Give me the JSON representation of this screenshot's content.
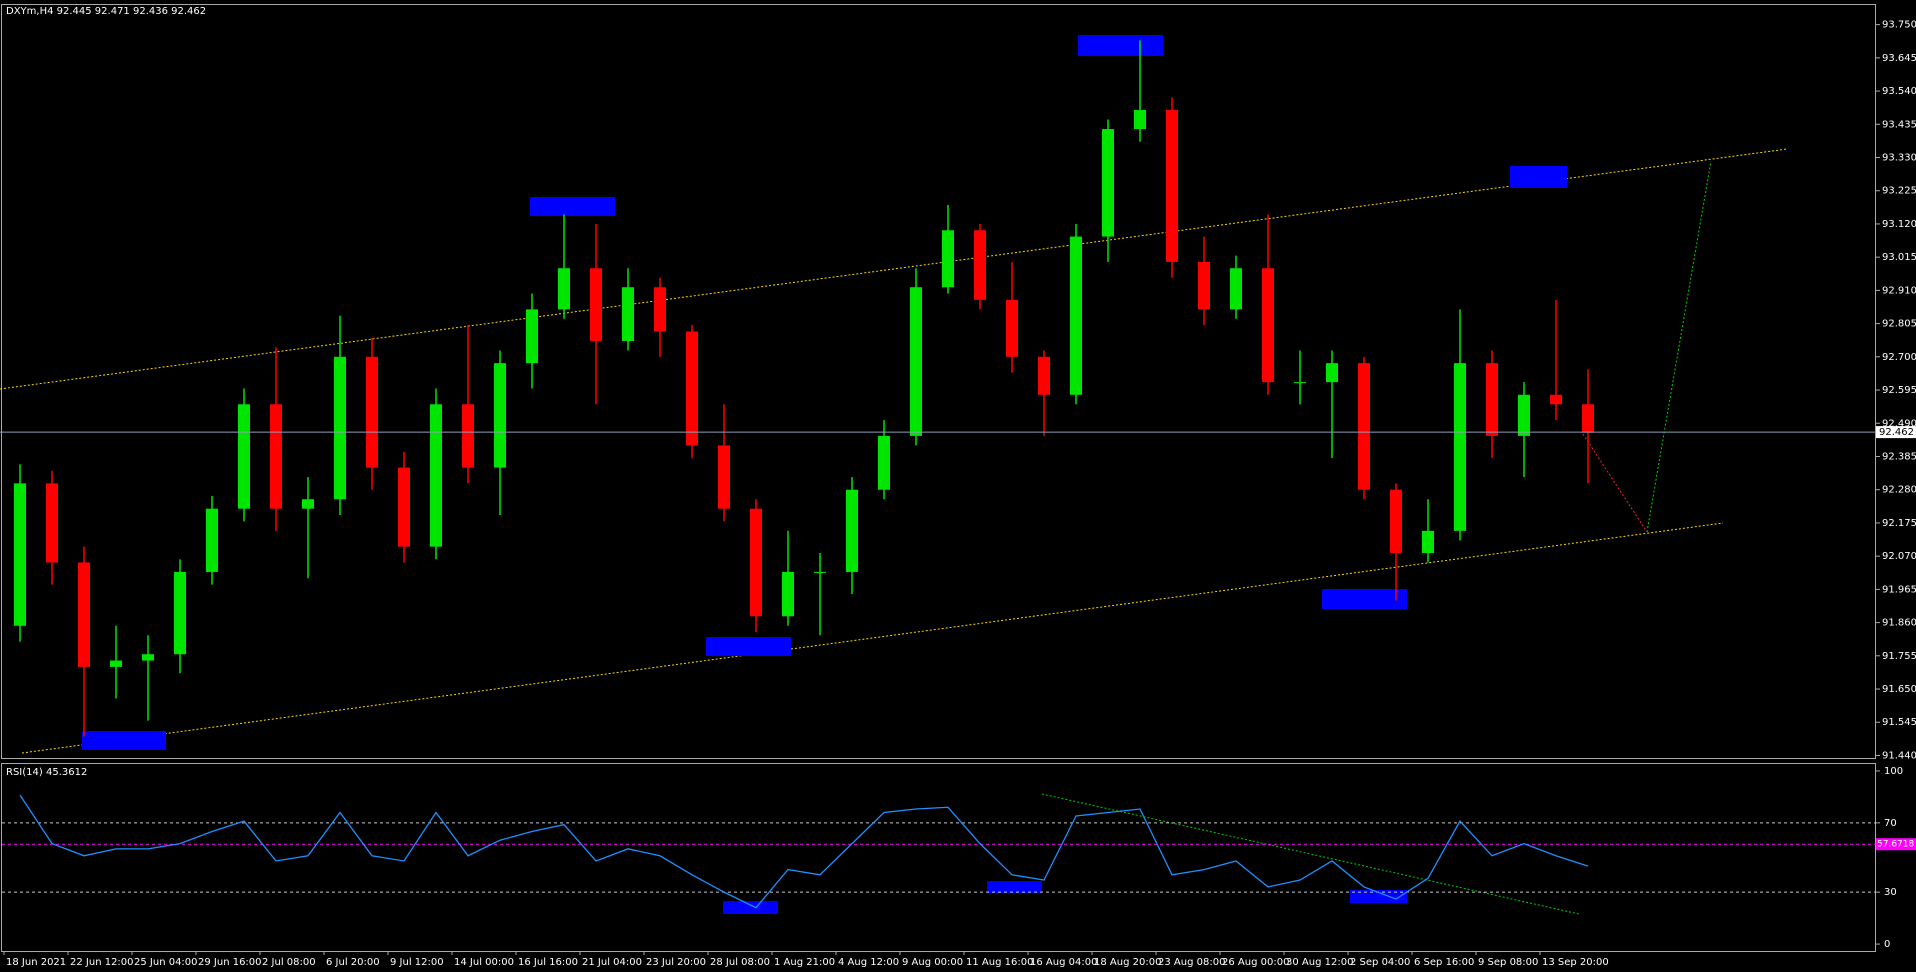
{
  "chart_data": [
    {
      "type": "candlestick",
      "title": "DXYm,H4  92.445 92.471 92.436 92.462",
      "categories": [
        "18 Jun 2021",
        null,
        "22 Jun 12:00",
        null,
        "25 Jun 04:00",
        null,
        "29 Jun 16:00",
        null,
        "2 Jul 08:00",
        null,
        "6 Jul 20:00",
        null,
        "9 Jul 12:00",
        null,
        "14 Jul 00:00",
        null,
        "16 Jul 16:00",
        null,
        "21 Jul 04:00",
        null,
        "23 Jul 20:00",
        null,
        "28 Jul 08:00",
        null,
        "1 Aug 21:00",
        null,
        "4 Aug 12:00",
        null,
        "9 Aug 00:00",
        null,
        "11 Aug 16:00",
        null,
        "16 Aug 04:00",
        null,
        "18 Aug 20:00",
        null,
        "23 Aug 08:00",
        null,
        "26 Aug 00:00",
        null,
        "30 Aug 12:00",
        null,
        "2 Sep 04:00",
        null,
        "6 Sep 16:00",
        null,
        "9 Sep 08:00",
        null,
        "13 Sep 20:00",
        null
      ],
      "open": [
        91.85,
        92.3,
        92.05,
        91.72,
        91.74,
        91.76,
        92.02,
        92.22,
        92.55,
        92.22,
        92.25,
        92.7,
        92.35,
        92.1,
        92.55,
        92.35,
        92.68,
        92.85,
        92.98,
        92.75,
        92.92,
        92.78,
        92.42,
        92.22,
        91.88,
        92.02,
        92.02,
        92.28,
        92.45,
        92.92,
        93.1,
        92.88,
        92.7,
        92.58,
        93.08,
        93.42,
        93.48,
        93.0,
        92.85,
        92.98,
        92.62,
        92.62,
        92.68,
        92.28,
        92.08,
        92.15,
        92.68,
        92.45,
        92.58,
        92.55
      ],
      "high": [
        92.36,
        92.34,
        92.1,
        91.85,
        91.82,
        92.06,
        92.26,
        92.6,
        92.73,
        92.32,
        92.83,
        92.76,
        92.4,
        92.6,
        92.8,
        92.72,
        92.9,
        93.15,
        93.12,
        92.98,
        92.95,
        92.8,
        92.55,
        92.25,
        92.15,
        92.08,
        92.32,
        92.5,
        92.98,
        93.18,
        93.12,
        93.0,
        92.72,
        93.12,
        93.45,
        93.7,
        93.52,
        93.08,
        93.02,
        93.15,
        92.72,
        92.72,
        92.7,
        92.3,
        92.25,
        92.85,
        92.72,
        92.62,
        92.88,
        92.66
      ],
      "low": [
        91.8,
        91.98,
        91.5,
        91.62,
        91.55,
        91.7,
        91.98,
        92.18,
        92.15,
        92.0,
        92.2,
        92.28,
        92.05,
        92.06,
        92.3,
        92.2,
        92.6,
        92.82,
        92.55,
        92.72,
        92.7,
        92.38,
        92.18,
        91.83,
        91.85,
        91.82,
        91.95,
        92.25,
        92.42,
        92.9,
        92.85,
        92.65,
        92.45,
        92.55,
        93.0,
        93.38,
        92.95,
        92.8,
        92.82,
        92.58,
        92.55,
        92.38,
        92.25,
        91.93,
        92.05,
        92.12,
        92.38,
        92.32,
        92.5,
        92.3
      ],
      "close": [
        92.3,
        92.05,
        91.72,
        91.74,
        91.76,
        92.02,
        92.22,
        92.55,
        92.22,
        92.25,
        92.7,
        92.35,
        92.1,
        92.55,
        92.35,
        92.68,
        92.85,
        92.98,
        92.75,
        92.92,
        92.78,
        92.42,
        92.22,
        91.88,
        92.02,
        92.02,
        92.28,
        92.45,
        92.92,
        93.1,
        92.88,
        92.7,
        92.58,
        93.08,
        93.42,
        93.48,
        93.0,
        92.85,
        92.98,
        92.62,
        92.62,
        92.68,
        92.28,
        92.08,
        92.15,
        92.68,
        92.45,
        92.58,
        92.55,
        92.46
      ],
      "up_color": "#00e600",
      "down_color": "#ff0000",
      "current_price": 92.462,
      "ylim": [
        91.432,
        93.812
      ],
      "yticks": [
        {
          "value": 93.75,
          "label": "93.750"
        },
        {
          "value": 93.645,
          "label": "93.645"
        },
        {
          "value": 93.54,
          "label": "93.540"
        },
        {
          "value": 93.435,
          "label": "93.435"
        },
        {
          "value": 93.33,
          "label": "93.330"
        },
        {
          "value": 93.225,
          "label": "93.225"
        },
        {
          "value": 93.12,
          "label": "93.120"
        },
        {
          "value": 93.015,
          "label": "93.015"
        },
        {
          "value": 92.91,
          "label": "92.910"
        },
        {
          "value": 92.805,
          "label": "92.805"
        },
        {
          "value": 92.7,
          "label": "92.700"
        },
        {
          "value": 92.595,
          "label": "92.595"
        },
        {
          "value": 92.49,
          "label": "92.490"
        },
        {
          "value": 92.385,
          "label": "92.385"
        },
        {
          "value": 92.28,
          "label": "92.280"
        },
        {
          "value": 92.175,
          "label": "92.175"
        },
        {
          "value": 92.07,
          "label": "92.070"
        },
        {
          "value": 91.965,
          "label": "91.965"
        },
        {
          "value": 91.86,
          "label": "91.860"
        },
        {
          "value": 91.755,
          "label": "91.755"
        },
        {
          "value": 91.65,
          "label": "91.650"
        },
        {
          "value": 91.545,
          "label": "91.545"
        },
        {
          "value": 91.44,
          "label": "91.440"
        }
      ]
    },
    {
      "type": "line",
      "title": "RSI(14) 45.3612",
      "color": "#1e90ff",
      "values": [
        86,
        58,
        51,
        55,
        55,
        58,
        65,
        71,
        48,
        51,
        76,
        51,
        48,
        76,
        51,
        60,
        65,
        69,
        48,
        55,
        51,
        40,
        30,
        21,
        43,
        40,
        58,
        76,
        78,
        79,
        58,
        40,
        37,
        74,
        76,
        78,
        40,
        43,
        48,
        33,
        37,
        48,
        33,
        26,
        38,
        71,
        51,
        58,
        51,
        45
      ],
      "levels": [
        70,
        30
      ],
      "signal_level": 57.6718,
      "ylim": [
        -4,
        104
      ],
      "yticks": [
        100,
        70,
        30,
        0
      ]
    }
  ]
}
